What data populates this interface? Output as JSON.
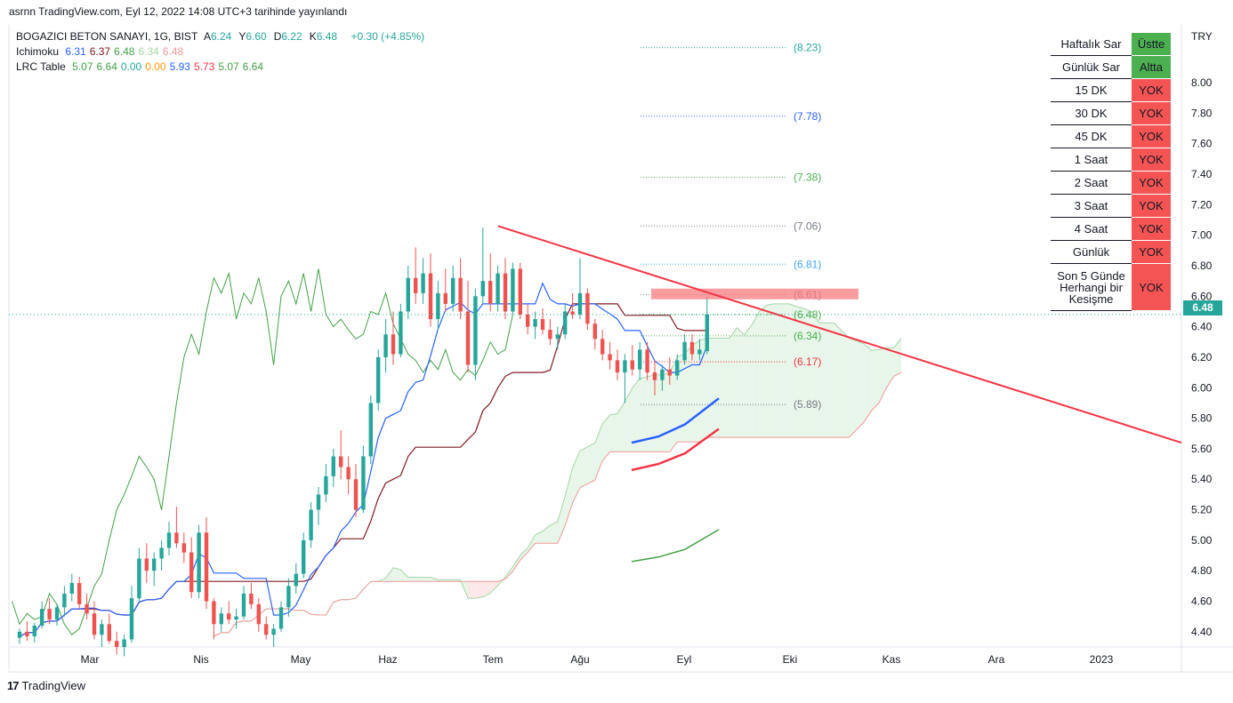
{
  "header": {
    "published": "asrnn TradingView.com, Eyl 12, 2022 14:08 UTC+3 tarihinde yayınlandı"
  },
  "legend": {
    "symbol": "BOGAZICI BETON SANAYI, 1G, BIST",
    "ohlc": [
      {
        "label": "A",
        "value": "6.24"
      },
      {
        "label": "Y",
        "value": "6.60"
      },
      {
        "label": "D",
        "value": "6.22"
      },
      {
        "label": "K",
        "value": "6.48"
      }
    ],
    "change": "+0.30 (+4.85%)",
    "ichimoku_name": "Ichimoku",
    "ichimoku_values": [
      "6.31",
      "6.37",
      "6.48",
      "6.34",
      "6.48"
    ],
    "lrc_name": "LRC Table",
    "lrc_values": [
      "5.07",
      "6.64",
      "0.00",
      "0.00",
      "5.93",
      "5.73",
      "5.07",
      "6.64"
    ]
  },
  "colors": {
    "up": "#26a69a",
    "down": "#ef5350",
    "tenkan": "#2962ff",
    "kijun": "#801922",
    "chikou": "#43a047",
    "cloud_up": "#e8f5e9",
    "cloud_down": "#fde8e8",
    "trendline": "#f23645",
    "zone": "#f77c80"
  },
  "table": [
    {
      "label": "Haftalık Sar",
      "value": "Üstte",
      "status": "green"
    },
    {
      "label": "Günlük Sar",
      "value": "Altta",
      "status": "green"
    },
    {
      "label": "15 DK",
      "value": "YOK",
      "status": "red"
    },
    {
      "label": "30 DK",
      "value": "YOK",
      "status": "red"
    },
    {
      "label": "45 DK",
      "value": "YOK",
      "status": "red"
    },
    {
      "label": "1 Saat",
      "value": "YOK",
      "status": "red"
    },
    {
      "label": "2 Saat",
      "value": "YOK",
      "status": "red"
    },
    {
      "label": "3 Saat",
      "value": "YOK",
      "status": "red"
    },
    {
      "label": "4 Saat",
      "value": "YOK",
      "status": "red"
    },
    {
      "label": "Günlük",
      "value": "YOK",
      "status": "red"
    },
    {
      "label": "Son 5 Günde Herhangi bir Kesişme",
      "value": "YOK",
      "status": "red"
    }
  ],
  "price_tag": "6.48",
  "footer": {
    "logo": "TradingView"
  },
  "chart_data": {
    "type": "candlestick",
    "currency": "TRY",
    "ylim": [
      4.3,
      8.3
    ],
    "yticks": [
      "8.00",
      "7.80",
      "7.60",
      "7.40",
      "7.20",
      "7.00",
      "6.80",
      "6.60",
      "6.40",
      "6.20",
      "6.00",
      "5.80",
      "5.60",
      "5.40",
      "5.20",
      "5.00",
      "4.80",
      "4.60",
      "4.40"
    ],
    "xticks": [
      "Mar",
      "Nis",
      "May",
      "Haz",
      "Tem",
      "Ağu",
      "Eyl",
      "Eki",
      "Kas",
      "Ara",
      "2023"
    ],
    "candles": [
      [
        4.36,
        4.42,
        4.32,
        4.4
      ],
      [
        4.4,
        4.47,
        4.34,
        4.37
      ],
      [
        4.37,
        4.46,
        4.33,
        4.44
      ],
      [
        4.44,
        4.6,
        4.42,
        4.55
      ],
      [
        4.55,
        4.62,
        4.45,
        4.48
      ],
      [
        4.48,
        4.58,
        4.44,
        4.56
      ],
      [
        4.56,
        4.7,
        4.5,
        4.65
      ],
      [
        4.65,
        4.78,
        4.6,
        4.72
      ],
      [
        4.72,
        4.76,
        4.55,
        4.58
      ],
      [
        4.58,
        4.65,
        4.48,
        4.52
      ],
      [
        4.52,
        4.6,
        4.35,
        4.38
      ],
      [
        4.38,
        4.48,
        4.3,
        4.45
      ],
      [
        4.45,
        4.52,
        4.32,
        4.34
      ],
      [
        4.34,
        4.4,
        4.25,
        4.3
      ],
      [
        4.3,
        4.38,
        4.24,
        4.35
      ],
      [
        4.35,
        4.7,
        4.33,
        4.62
      ],
      [
        4.62,
        4.95,
        4.6,
        4.88
      ],
      [
        4.88,
        4.98,
        4.72,
        4.8
      ],
      [
        4.8,
        4.92,
        4.7,
        4.88
      ],
      [
        4.88,
        5.0,
        4.8,
        4.95
      ],
      [
        4.95,
        5.12,
        4.9,
        5.05
      ],
      [
        5.05,
        5.22,
        4.95,
        4.98
      ],
      [
        4.98,
        5.05,
        4.85,
        4.92
      ],
      [
        4.92,
        5.02,
        4.62,
        4.66
      ],
      [
        4.66,
        5.1,
        4.62,
        5.05
      ],
      [
        5.05,
        5.15,
        4.55,
        4.6
      ],
      [
        4.6,
        4.62,
        4.35,
        4.45
      ],
      [
        4.45,
        4.56,
        4.4,
        4.52
      ],
      [
        4.52,
        4.6,
        4.45,
        4.48
      ],
      [
        4.48,
        4.55,
        4.42,
        4.5
      ],
      [
        4.5,
        4.7,
        4.48,
        4.65
      ],
      [
        4.65,
        4.72,
        4.55,
        4.58
      ],
      [
        4.58,
        4.62,
        4.4,
        4.45
      ],
      [
        4.45,
        4.5,
        4.35,
        4.38
      ],
      [
        4.38,
        4.45,
        4.3,
        4.42
      ],
      [
        4.42,
        4.6,
        4.4,
        4.56
      ],
      [
        4.56,
        4.75,
        4.5,
        4.7
      ],
      [
        4.7,
        4.85,
        4.65,
        4.78
      ],
      [
        4.78,
        5.05,
        4.75,
        5.0
      ],
      [
        5.0,
        5.25,
        4.95,
        5.2
      ],
      [
        5.2,
        5.35,
        5.1,
        5.3
      ],
      [
        5.3,
        5.5,
        5.25,
        5.42
      ],
      [
        5.42,
        5.6,
        5.35,
        5.55
      ],
      [
        5.55,
        5.72,
        5.4,
        5.48
      ],
      [
        5.48,
        5.55,
        5.3,
        5.4
      ],
      [
        5.4,
        5.5,
        5.15,
        5.2
      ],
      [
        5.2,
        5.62,
        5.18,
        5.55
      ],
      [
        5.55,
        5.95,
        5.5,
        5.9
      ],
      [
        5.9,
        6.25,
        5.85,
        6.2
      ],
      [
        6.2,
        6.45,
        6.1,
        6.35
      ],
      [
        6.35,
        6.5,
        6.15,
        6.22
      ],
      [
        6.22,
        6.55,
        6.2,
        6.5
      ],
      [
        6.5,
        6.8,
        6.45,
        6.72
      ],
      [
        6.72,
        6.92,
        6.55,
        6.62
      ],
      [
        6.62,
        6.85,
        6.55,
        6.75
      ],
      [
        6.75,
        6.88,
        6.4,
        6.45
      ],
      [
        6.45,
        6.7,
        6.38,
        6.62
      ],
      [
        6.62,
        6.78,
        6.5,
        6.55
      ],
      [
        6.55,
        6.8,
        6.5,
        6.72
      ],
      [
        6.72,
        6.85,
        6.45,
        6.5
      ],
      [
        6.5,
        6.7,
        6.1,
        6.15
      ],
      [
        6.15,
        6.65,
        6.05,
        6.6
      ],
      [
        6.6,
        7.05,
        6.55,
        6.7
      ],
      [
        6.7,
        6.88,
        6.5,
        6.55
      ],
      [
        6.55,
        6.8,
        6.5,
        6.75
      ],
      [
        6.75,
        6.85,
        6.45,
        6.5
      ],
      [
        6.5,
        6.82,
        6.48,
        6.78
      ],
      [
        6.78,
        6.82,
        6.45,
        6.48
      ],
      [
        6.48,
        6.55,
        6.35,
        6.4
      ],
      [
        6.4,
        6.5,
        6.32,
        6.45
      ],
      [
        6.45,
        6.52,
        6.35,
        6.38
      ],
      [
        6.38,
        6.45,
        6.28,
        6.32
      ],
      [
        6.32,
        6.4,
        6.25,
        6.35
      ],
      [
        6.35,
        6.55,
        6.32,
        6.5
      ],
      [
        6.5,
        6.62,
        6.45,
        6.48
      ],
      [
        6.48,
        6.85,
        6.45,
        6.62
      ],
      [
        6.62,
        6.65,
        6.38,
        6.42
      ],
      [
        6.42,
        6.45,
        6.25,
        6.32
      ],
      [
        6.32,
        6.38,
        6.18,
        6.22
      ],
      [
        6.22,
        6.3,
        6.12,
        6.18
      ],
      [
        6.18,
        6.25,
        6.05,
        6.1
      ],
      [
        6.1,
        6.22,
        5.9,
        6.18
      ],
      [
        6.18,
        6.28,
        6.08,
        6.12
      ],
      [
        6.12,
        6.3,
        6.05,
        6.25
      ],
      [
        6.25,
        6.3,
        6.05,
        6.1
      ],
      [
        6.1,
        6.18,
        5.95,
        6.05
      ],
      [
        6.05,
        6.15,
        5.98,
        6.12
      ],
      [
        6.12,
        6.2,
        6.02,
        6.08
      ],
      [
        6.08,
        6.22,
        6.05,
        6.18
      ],
      [
        6.18,
        6.35,
        6.15,
        6.3
      ],
      [
        6.3,
        6.35,
        6.18,
        6.22
      ],
      [
        6.22,
        6.32,
        6.18,
        6.25
      ],
      [
        6.24,
        6.6,
        6.22,
        6.48
      ]
    ],
    "levels": [
      {
        "label": "(8.23)",
        "value": 8.23,
        "color": "#26a69a"
      },
      {
        "label": "(7.78)",
        "value": 7.78,
        "color": "#2962ff"
      },
      {
        "label": "(7.38)",
        "value": 7.38,
        "color": "#4caf50"
      },
      {
        "label": "(7.06)",
        "value": 7.06,
        "color": "#787b86"
      },
      {
        "label": "(6.81)",
        "value": 6.81,
        "color": "#42a5f5"
      },
      {
        "label": "(6.61)",
        "value": 6.61,
        "color": "#787b86"
      },
      {
        "label": "(6.48)",
        "value": 6.48,
        "color": "#4caf50"
      },
      {
        "label": "(6.34)",
        "value": 6.34,
        "color": "#4caf50"
      },
      {
        "label": "(6.17)",
        "value": 6.17,
        "color": "#f23645"
      },
      {
        "label": "(5.89)",
        "value": 5.89,
        "color": "#787b86"
      }
    ],
    "trendline": {
      "from": [
        62,
        7.06
      ],
      "to": [
        175,
        5.64
      ]
    }
  }
}
